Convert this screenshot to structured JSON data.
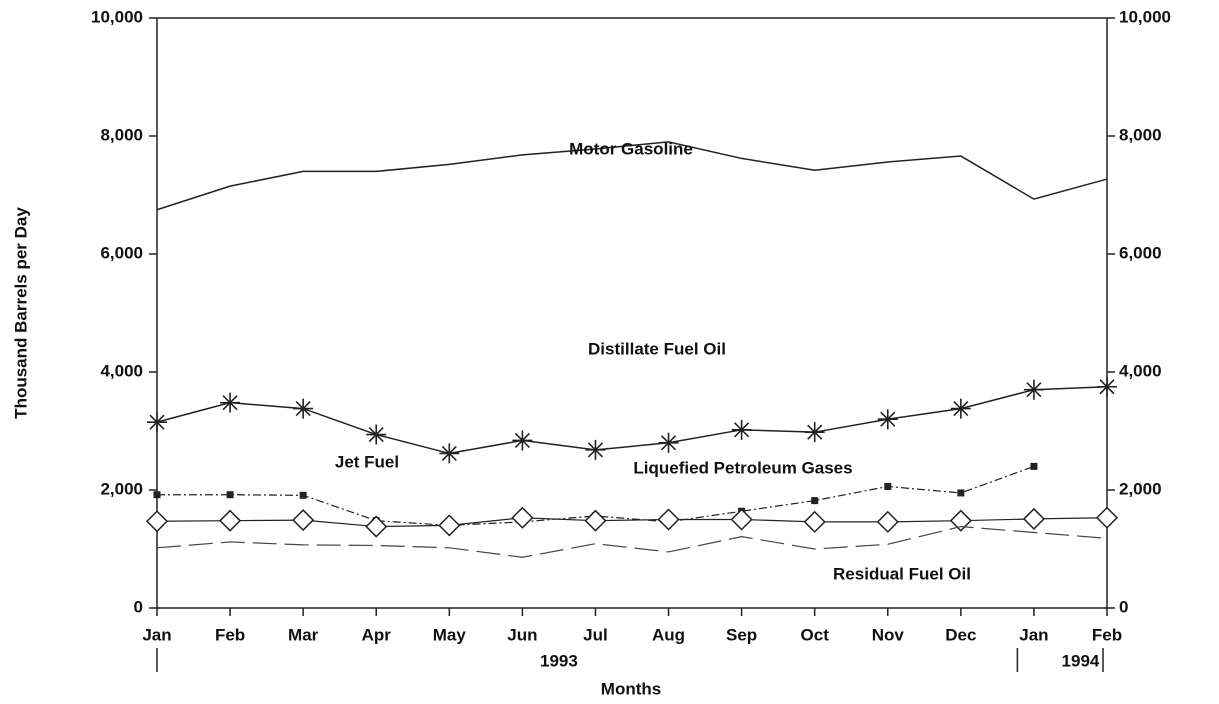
{
  "chart_data": {
    "type": "line",
    "ylabel": "Thousand Barrels per Day",
    "xlabel": "Months",
    "categories": [
      "Jan",
      "Feb",
      "Mar",
      "Apr",
      "May",
      "Jun",
      "Jul",
      "Aug",
      "Sep",
      "Oct",
      "Nov",
      "Dec",
      "Jan",
      "Feb"
    ],
    "x_groups": [
      "1993",
      "1994"
    ],
    "ylim": [
      0,
      10000
    ],
    "yticks": [
      0,
      {
        "value": 2000,
        "label": "2,000"
      },
      {
        "value": 4000,
        "label": "4,000"
      },
      {
        "value": 6000,
        "label": "6,000"
      },
      {
        "value": 8000,
        "label": "8,000"
      },
      {
        "value": 10000,
        "label": "10,000"
      }
    ],
    "y2lim": [
      0,
      10000
    ],
    "y2ticks": [
      0,
      {
        "value": 2000,
        "label": "2,000"
      },
      {
        "value": 4000,
        "label": "4,000"
      },
      {
        "value": 6000,
        "label": "6,000"
      },
      {
        "value": 8000,
        "label": "8,000"
      },
      {
        "value": 10000,
        "label": "10,000"
      }
    ],
    "series": [
      {
        "name": "Motor Gasoline",
        "color": "#222222",
        "marker": "none",
        "values": [
          6750,
          7150,
          7400,
          7400,
          7520,
          7680,
          7780,
          7900,
          7620,
          7420,
          7560,
          7660,
          6930,
          7270
        ]
      },
      {
        "name": "Distillate Fuel Oil",
        "color": "#222222",
        "marker": "star",
        "values": [
          3150,
          3480,
          3380,
          2940,
          2620,
          2840,
          2680,
          2800,
          3020,
          2980,
          3200,
          3380,
          3700,
          3750
        ]
      },
      {
        "name": "Liquefied Petroleum Gases",
        "color": "#222222",
        "marker": "square",
        "values": [
          1920,
          1920,
          1910,
          1480,
          1400,
          1460,
          1560,
          1460,
          1640,
          1820,
          2060,
          1950,
          2400,
          null
        ]
      },
      {
        "name": "Jet Fuel",
        "color": "#222222",
        "marker": "diamond",
        "values": [
          1470,
          1480,
          1490,
          1380,
          1400,
          1530,
          1480,
          1500,
          1500,
          1460,
          1460,
          1480,
          1510,
          1530
        ]
      },
      {
        "name": "Residual Fuel Oil",
        "color": "#444444",
        "marker": "none",
        "values": [
          1020,
          1120,
          1070,
          1060,
          1020,
          860,
          1090,
          950,
          1210,
          1000,
          1080,
          1380,
          1280,
          1180
        ]
      }
    ]
  }
}
